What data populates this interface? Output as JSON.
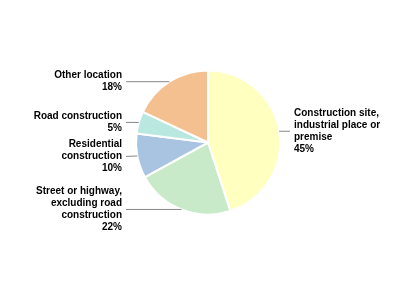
{
  "chart_data": {
    "type": "pie",
    "categories": [
      "Construction site,\nindustrial place or\npremise",
      "Street or highway,\nexcluding road\nconstruction",
      "Residential\nconstruction",
      "Road construction",
      "Other location"
    ],
    "values": [
      45,
      22,
      10,
      5,
      18
    ],
    "value_labels": [
      "45%",
      "22%",
      "10%",
      "5%",
      "18%"
    ],
    "colors": [
      "#FFFFC0",
      "#C8EAC8",
      "#A8C4E0",
      "#B8E8E0",
      "#F5C090"
    ],
    "data_labels": true
  }
}
